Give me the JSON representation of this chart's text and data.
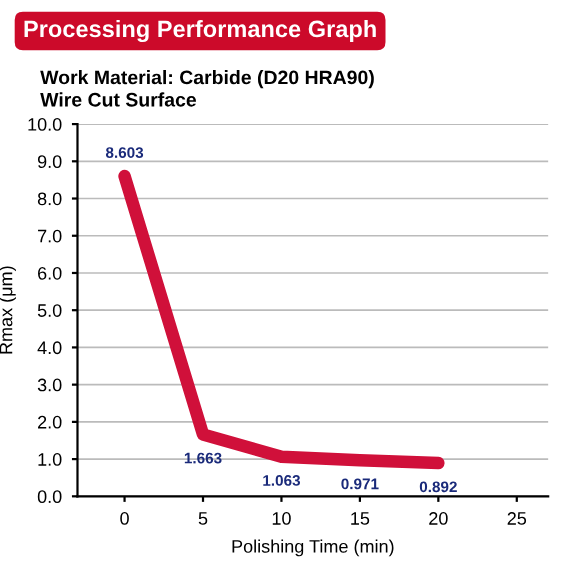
{
  "chart_data": {
    "type": "line",
    "title": "Processing Performance Graph",
    "subtitle": "Work Material: Carbide (D20 HRA90)\nWire Cut Surface",
    "xlabel": "Polishing Time (min)",
    "ylabel": "Rmax (μm)",
    "x": [
      0,
      5,
      10,
      15,
      20
    ],
    "series": [
      {
        "color": "#d0103a",
        "values": [
          8.603,
          1.663,
          1.063,
          0.971,
          0.892
        ]
      }
    ],
    "data_labels": true,
    "xlim": [
      -3,
      27
    ],
    "xticks": [
      0,
      5,
      10,
      15,
      20,
      25
    ],
    "ylim": [
      0,
      10
    ],
    "yticks": [
      {
        "value": 0,
        "label": "0.0"
      },
      {
        "value": 1,
        "label": "1.0"
      },
      {
        "value": 2,
        "label": "2.0"
      },
      {
        "value": 3,
        "label": "3.0"
      },
      {
        "value": 4,
        "label": "4.0"
      },
      {
        "value": 5,
        "label": "5.0"
      },
      {
        "value": 6,
        "label": "6.0"
      },
      {
        "value": 7,
        "label": "7.0"
      },
      {
        "value": 8,
        "label": "8.0"
      },
      {
        "value": 9,
        "label": "9.0"
      },
      {
        "value": 10,
        "label": "10.0"
      }
    ],
    "grid": "y",
    "marker": "none",
    "line_style": "solid"
  }
}
